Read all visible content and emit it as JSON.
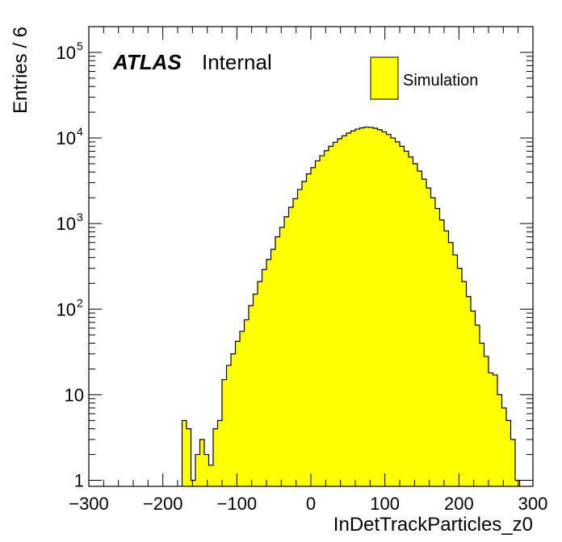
{
  "chart_data": {
    "type": "bar",
    "title": "",
    "xlabel": "InDetTrackParticles_z0",
    "ylabel": "Entries / 6",
    "xlim": [
      -300,
      300
    ],
    "ylim": [
      0.85,
      200000
    ],
    "yscale": "log",
    "bin_width": 6,
    "grid": false,
    "x_ticks": [
      -300,
      -200,
      -100,
      0,
      100,
      200,
      300
    ],
    "x_tick_labels": [
      "−300",
      "−200",
      "−100",
      "0",
      "100",
      "200",
      "300"
    ],
    "y_ticks": [
      {
        "value": 1,
        "base": "1",
        "exp": ""
      },
      {
        "value": 10,
        "base": "10",
        "exp": ""
      },
      {
        "value": 100,
        "base": "10",
        "exp": "2"
      },
      {
        "value": 1000,
        "base": "10",
        "exp": "3"
      },
      {
        "value": 10000,
        "base": "10",
        "exp": "4"
      },
      {
        "value": 100000,
        "base": "10",
        "exp": "5"
      }
    ],
    "fill_color": "#ffff00",
    "line_color": "#000000",
    "series": [
      {
        "name": "Simulation",
        "bin_edges_start": -174,
        "values": [
          5,
          4,
          1,
          2,
          3,
          2,
          1.5,
          4,
          5,
          15,
          22,
          30,
          42,
          55,
          75,
          110,
          150,
          210,
          290,
          380,
          500,
          700,
          900,
          1200,
          1550,
          1950,
          2500,
          3100,
          3800,
          4500,
          5400,
          6200,
          7100,
          8000,
          8900,
          9800,
          10600,
          11400,
          12100,
          12700,
          13100,
          13400,
          13300,
          13000,
          12500,
          11800,
          11000,
          10000,
          9000,
          8000,
          7000,
          6000,
          5000,
          4100,
          3300,
          2600,
          2000,
          1500,
          1100,
          820,
          600,
          430,
          300,
          210,
          140,
          95,
          65,
          40,
          28,
          18,
          17,
          10,
          7,
          5,
          3,
          1
        ]
      }
    ],
    "legend": {
      "position": "top-right",
      "entries": [
        "Simulation"
      ]
    },
    "annotations": {
      "atlas": "ATLAS",
      "label": "Internal"
    }
  }
}
